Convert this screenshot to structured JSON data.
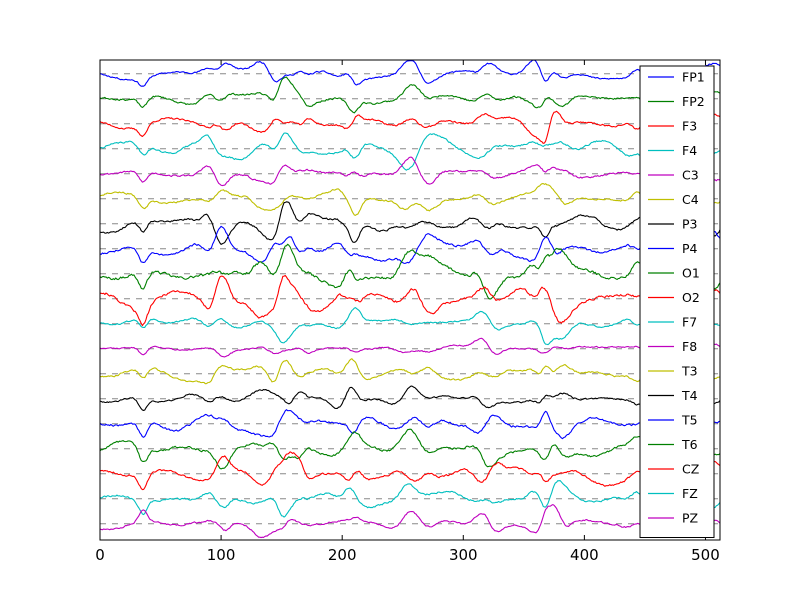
{
  "chart_data": {
    "type": "line",
    "title": "",
    "xlabel": "",
    "ylabel": "",
    "xlim": [
      0,
      512
    ],
    "x_ticks": [
      "0",
      "100",
      "200",
      "300",
      "400",
      "500"
    ],
    "x_tick_values": [
      0,
      100,
      200,
      300,
      400,
      500
    ],
    "y_ticks": [],
    "grid": false,
    "legend_position": "right",
    "baseline_style": "dashed-gray",
    "samples": 512,
    "series": [
      {
        "name": "FP1",
        "color": "#0000ff",
        "seed": 11,
        "amp": 0.3
      },
      {
        "name": "FP2",
        "color": "#008000",
        "seed": 23,
        "amp": 0.34
      },
      {
        "name": "F3",
        "color": "#ff0000",
        "seed": 37,
        "amp": 0.34
      },
      {
        "name": "F4",
        "color": "#00bfbf",
        "seed": 41,
        "amp": 0.34
      },
      {
        "name": "C3",
        "color": "#bf00bf",
        "seed": 53,
        "amp": 0.34
      },
      {
        "name": "C4",
        "color": "#bfbf00",
        "seed": 67,
        "amp": 0.32
      },
      {
        "name": "P3",
        "color": "#000000",
        "seed": 71,
        "amp": 0.38
      },
      {
        "name": "P4",
        "color": "#0000ff",
        "seed": 83,
        "amp": 0.4
      },
      {
        "name": "O1",
        "color": "#008000",
        "seed": 97,
        "amp": 0.52
      },
      {
        "name": "O2",
        "color": "#ff0000",
        "seed": 101,
        "amp": 0.5
      },
      {
        "name": "F7",
        "color": "#00bfbf",
        "seed": 113,
        "amp": 0.28
      },
      {
        "name": "F8",
        "color": "#bf00bf",
        "seed": 127,
        "amp": 0.24
      },
      {
        "name": "T3",
        "color": "#bfbf00",
        "seed": 131,
        "amp": 0.32
      },
      {
        "name": "T4",
        "color": "#000000",
        "seed": 149,
        "amp": 0.3
      },
      {
        "name": "T5",
        "color": "#0000ff",
        "seed": 157,
        "amp": 0.4
      },
      {
        "name": "T6",
        "color": "#008000",
        "seed": 163,
        "amp": 0.4
      },
      {
        "name": "CZ",
        "color": "#ff0000",
        "seed": 173,
        "amp": 0.38
      },
      {
        "name": "FZ",
        "color": "#00bfbf",
        "seed": 181,
        "amp": 0.34
      },
      {
        "name": "PZ",
        "color": "#bf00bf",
        "seed": 191,
        "amp": 0.3
      }
    ]
  }
}
